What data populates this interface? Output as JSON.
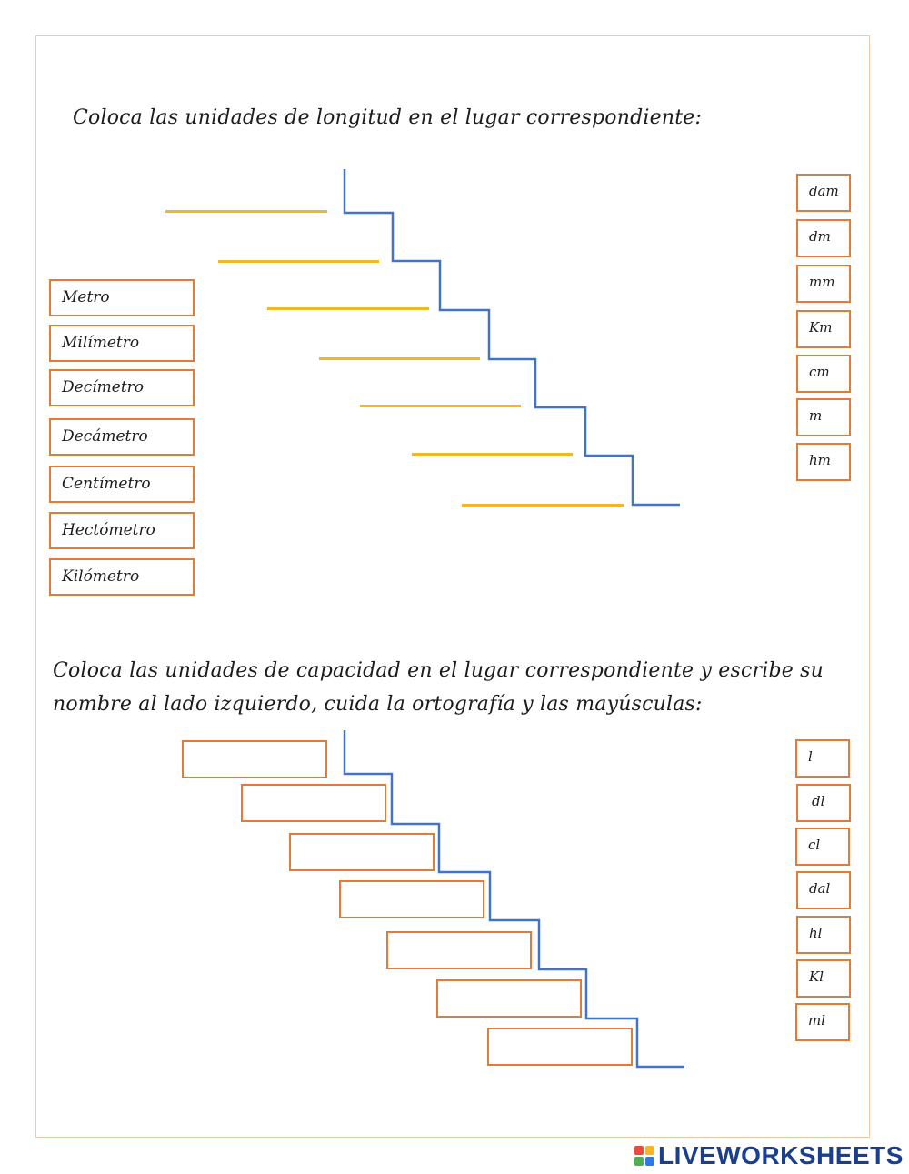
{
  "section1": {
    "instruction": "Coloca las unidades de longitud en el lugar correspondiente:",
    "names": [
      "Metro",
      "Milímetro",
      "Decímetro",
      "Decámetro",
      "Centímetro",
      "Hectómetro",
      "Kilómetro"
    ],
    "abbreviations": [
      "dam",
      "dm",
      "mm",
      "Km",
      "cm",
      "m",
      "hm"
    ]
  },
  "section2": {
    "instruction_line1": "Coloca las unidades de capacidad en el lugar correspondiente y escribe su",
    "instruction_line2": "nombre al lado izquierdo, cuida la ortografía y las mayúsculas:",
    "abbreviations": [
      "l",
      "dl",
      "cl",
      "dal",
      "hl",
      "Kl",
      "ml"
    ]
  },
  "footer": {
    "logo_text": "LIVEWORKSHEETS"
  },
  "colors": {
    "box_border": "#e07b39",
    "stair_line": "#4472c4",
    "answer_line": "#f1b824",
    "logo": "#1a3f8f"
  }
}
